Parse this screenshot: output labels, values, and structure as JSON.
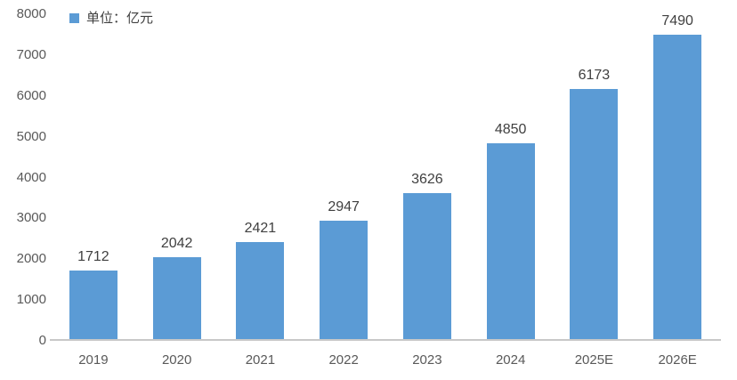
{
  "chart_data": {
    "type": "bar",
    "title": "",
    "legend": "单位：亿元",
    "legend_position": "top-left",
    "categories": [
      "2019",
      "2020",
      "2021",
      "2022",
      "2023",
      "2024",
      "2025E",
      "2026E"
    ],
    "values": [
      1712,
      2042,
      2421,
      2947,
      3626,
      4850,
      6173,
      7490
    ],
    "ylim": [
      0,
      8000
    ],
    "yticks": [
      0,
      1000,
      2000,
      3000,
      4000,
      5000,
      6000,
      7000,
      8000
    ],
    "grid": false,
    "colors": {
      "bar": "#5B9BD5",
      "axis_line": "#C8C8C8",
      "tick_label": "#595959",
      "data_label": "#404040",
      "background": "#FFFFFF"
    }
  }
}
